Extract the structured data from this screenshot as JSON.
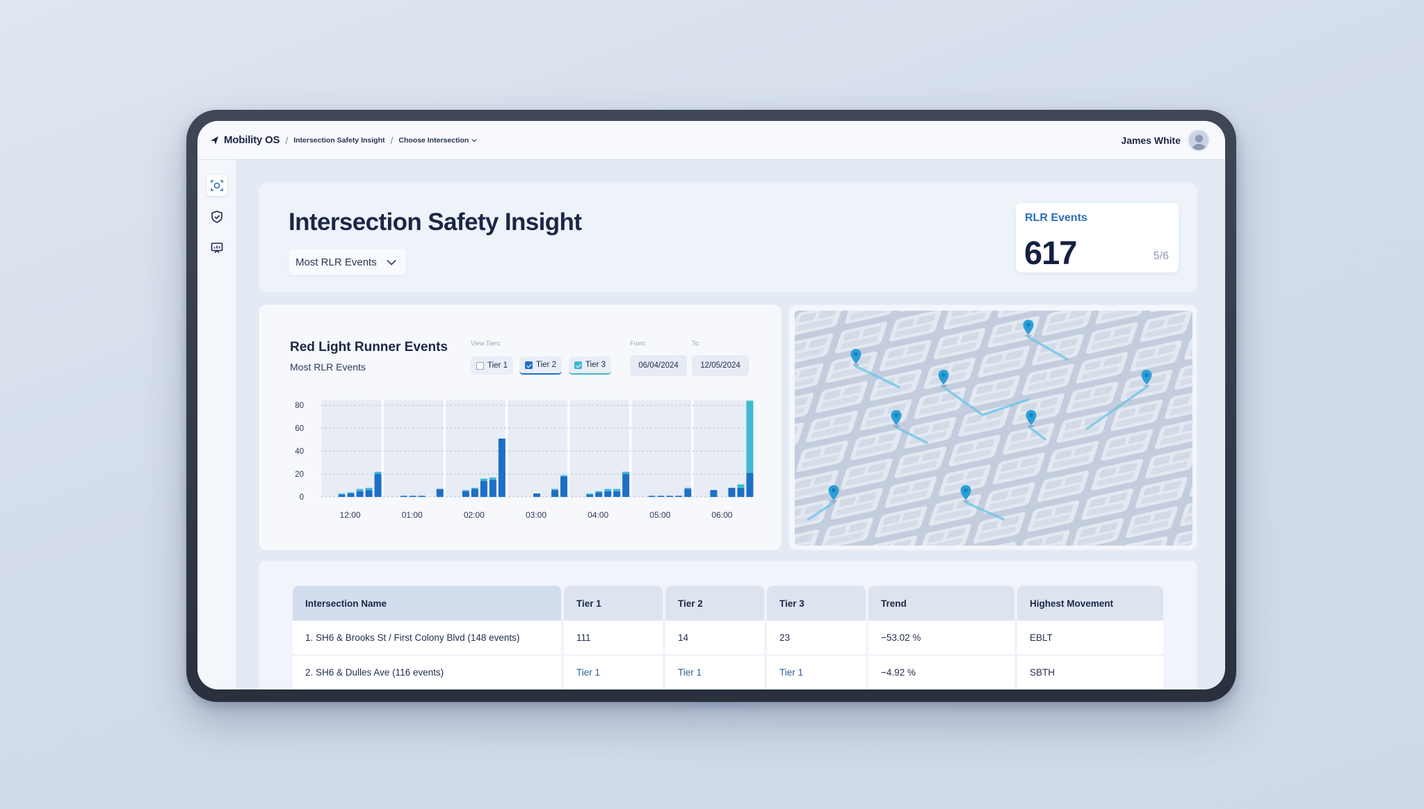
{
  "app": {
    "name": "Mobility OS",
    "breadcrumbs": [
      "Intersection Safety Insight",
      "Choose Intersection"
    ],
    "user_name": "James White"
  },
  "sidebar": {
    "items": [
      {
        "icon": "scan-camera-icon",
        "active": true
      },
      {
        "icon": "shield-check-icon",
        "active": false
      },
      {
        "icon": "presentation-chart-icon",
        "active": false
      }
    ]
  },
  "header": {
    "title": "Intersection Safety Insight",
    "sort_select": "Most RLR Events",
    "kpi": {
      "label": "RLR Events",
      "value": "617",
      "fraction": "5/6"
    }
  },
  "chart_panel": {
    "title": "Red Light Runner Events",
    "subtitle": "Most RLR Events",
    "view_tiers_label": "View Tiers:",
    "tiers": [
      {
        "label": "Tier 1",
        "checked": false,
        "color": "#1f6fc5"
      },
      {
        "label": "Tier 2",
        "checked": true,
        "color": "#1f6fc5"
      },
      {
        "label": "Tier 3",
        "checked": true,
        "color": "#3dbad3"
      }
    ],
    "from_label": "From:",
    "to_label": "To:",
    "from_date": "06/04/2024",
    "to_date": "12/05/2024"
  },
  "chart_data": {
    "type": "bar",
    "title": "Red Light Runner Events",
    "subtitle": "Most RLR Events",
    "categories": [
      "12:00",
      "01:00",
      "02:00",
      "03:00",
      "04:00",
      "05:00",
      "06:00"
    ],
    "y_ticks": [
      0,
      20,
      40,
      60,
      80
    ],
    "ylim": [
      0,
      85
    ],
    "grid": true,
    "groups": [
      {
        "category": "12:00",
        "bars": [
          [
            2,
            1
          ],
          [
            3,
            1
          ],
          [
            5,
            2
          ],
          [
            6,
            2
          ],
          [
            20,
            2
          ]
        ]
      },
      {
        "category": "01:00",
        "bars": [
          [
            1,
            0
          ],
          [
            1,
            0
          ],
          [
            1,
            0
          ],
          [
            0,
            0
          ],
          [
            7,
            0
          ]
        ]
      },
      {
        "category": "02:00",
        "bars": [
          [
            5,
            1
          ],
          [
            7,
            1
          ],
          [
            14,
            2
          ],
          [
            15,
            2
          ],
          [
            51,
            0
          ]
        ]
      },
      {
        "category": "03:00",
        "bars": [
          [
            0,
            0
          ],
          [
            3,
            0
          ],
          [
            0,
            0
          ],
          [
            6,
            1
          ],
          [
            18,
            1
          ]
        ]
      },
      {
        "category": "04:00",
        "bars": [
          [
            2,
            1
          ],
          [
            4,
            1
          ],
          [
            5,
            2
          ],
          [
            5,
            2
          ],
          [
            20,
            2
          ]
        ]
      },
      {
        "category": "05:00",
        "bars": [
          [
            1,
            0
          ],
          [
            1,
            0
          ],
          [
            1,
            0
          ],
          [
            1,
            0
          ],
          [
            7,
            1
          ]
        ]
      },
      {
        "category": "06:00",
        "bars": [
          [
            6,
            0
          ],
          [
            0,
            0
          ],
          [
            8,
            0
          ],
          [
            8,
            3
          ],
          [
            21,
            63
          ]
        ]
      }
    ],
    "series": [
      {
        "name": "Tier 2",
        "color": "#1f6fc5"
      },
      {
        "name": "Tier 3",
        "color": "#3dbad3"
      }
    ]
  },
  "map": {
    "pin_count": 9,
    "pin_color": "#2b9fd9",
    "route_color": "#6cc3e8"
  },
  "table": {
    "columns": [
      "Intersection Name",
      "Tier 1",
      "Tier 2",
      "Tier 3",
      "Trend",
      "Highest Movement"
    ],
    "rows": [
      [
        "1. SH6 & Brooks St / First Colony Blvd (148 events)",
        "111",
        "14",
        "23",
        "−53.02 %",
        "EBLT"
      ],
      [
        "2. SH6 & Dulles Ave (116 events)",
        "Tier 1",
        "Tier 1",
        "Tier 1",
        "−4.92 %",
        "SBTH"
      ]
    ]
  }
}
